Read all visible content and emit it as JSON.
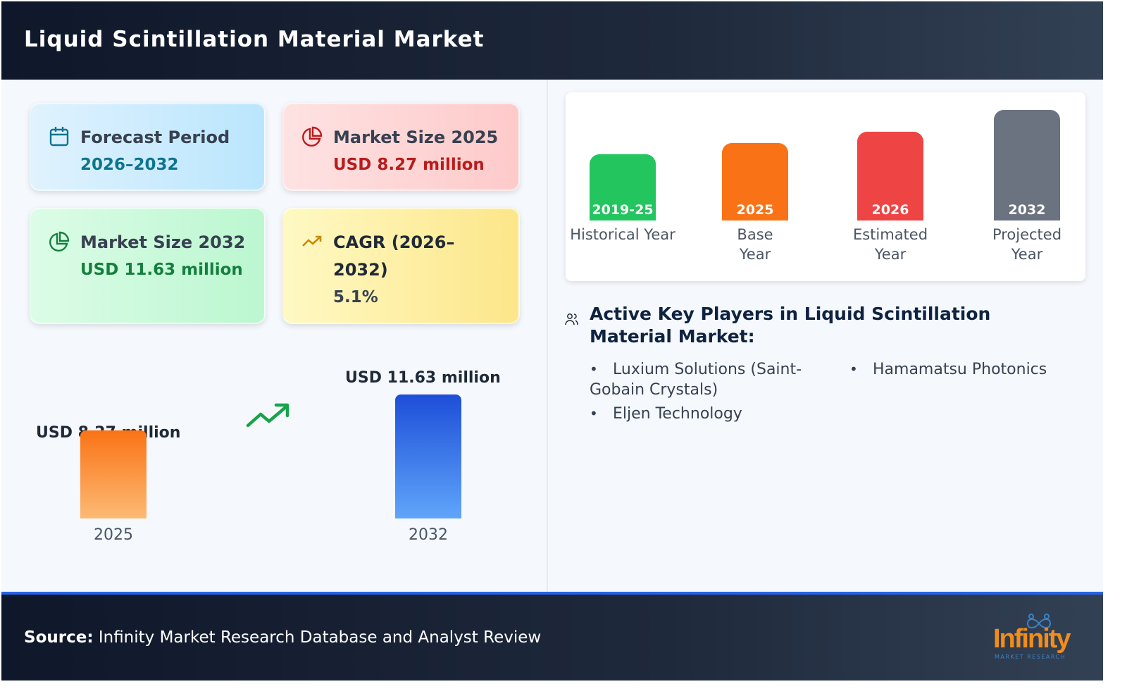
{
  "header": {
    "title": "Liquid Scintillation Material Market"
  },
  "cards": [
    {
      "label": "Forecast Period",
      "value": "2026–2032",
      "icon": "calendar-icon",
      "color": "#0e7490"
    },
    {
      "label": "Market Size 2025",
      "value": "USD 8.27 million",
      "icon": "pie-chart-icon",
      "color": "#b91c1c"
    },
    {
      "label": "Market Size 2032",
      "value": "USD 11.63 million",
      "icon": "pie-chart-icon",
      "color": "#15803d"
    },
    {
      "label": "CAGR (2026–2032)",
      "value": "5.1%",
      "icon": "trending-up-icon",
      "color": "#ca8a04"
    }
  ],
  "timeline": [
    {
      "tag": "2019-25",
      "label": "Historical Year",
      "color": "#22c55e"
    },
    {
      "tag": "2025",
      "label": "Base Year",
      "color": "#f97316"
    },
    {
      "tag": "2026",
      "label": "Estimated Year",
      "color": "#ef4444"
    },
    {
      "tag": "2032",
      "label": "Projected Year",
      "color": "#6b7280"
    }
  ],
  "chart_data": {
    "type": "bar",
    "categories": [
      "2025",
      "2032"
    ],
    "values": [
      8.27,
      11.63
    ],
    "labels": [
      "USD 8.27 million",
      "USD 11.63 million"
    ],
    "colors": [
      "#f97316",
      "#2563eb"
    ]
  },
  "players": {
    "title": "Active Key Players in Liquid Scintillation Material Market:",
    "items": [
      "Luxium Solutions (Saint-Gobain Crystals)",
      "Hamamatsu Photonics",
      "Eljen Technology"
    ]
  },
  "footer": {
    "source_label": "Source:",
    "source_text": "Infinity Market Research Database and Analyst Review",
    "logo_text": "Infinity",
    "logo_sub": "MARKET RESEARCH"
  }
}
